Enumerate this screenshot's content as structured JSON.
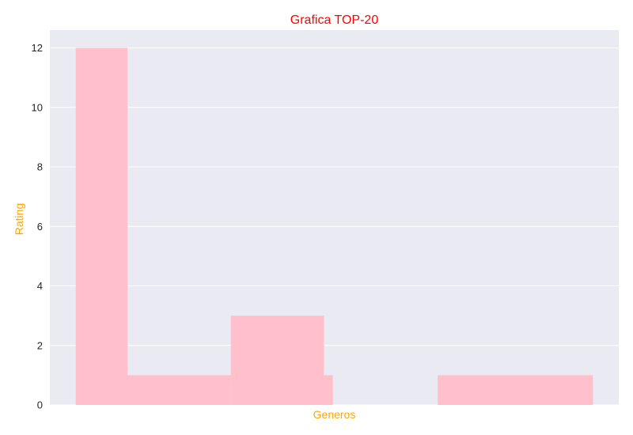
{
  "chart_data": {
    "type": "bar",
    "title": "Grafica TOP-20",
    "xlabel": "Generos",
    "ylabel": "Rating",
    "ylim": [
      0,
      12.6
    ],
    "yticks": [
      0,
      2,
      4,
      6,
      8,
      10,
      12
    ],
    "grid": true,
    "style": "seaborn-darkgrid",
    "colors": {
      "title": "#ff0000",
      "axis_label": "#ffa500",
      "bar": "#ffc0cb",
      "plot_background": "#eaeaf2",
      "gridline": "#ffffff"
    },
    "bars": [
      {
        "x0": -0.5,
        "x1": 0.5,
        "value": 12
      },
      {
        "x0": 0.5,
        "x1": 2.5,
        "value": 1
      },
      {
        "x0": 2.5,
        "x1": 4.3,
        "value": 3
      },
      {
        "x0": 4.3,
        "x1": 4.47,
        "value": 1
      },
      {
        "x0": 6.5,
        "x1": 9.5,
        "value": 1
      }
    ],
    "xlim": [
      -1,
      10
    ]
  }
}
